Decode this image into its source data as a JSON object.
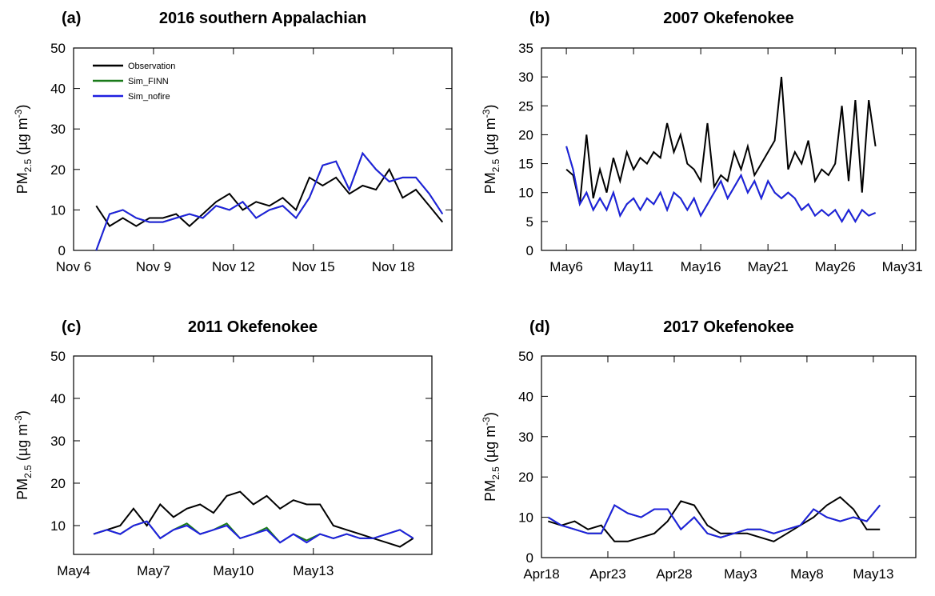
{
  "chart_data": [
    {
      "type": "line",
      "panel": "(a)",
      "title": "2016 southern Appalachian",
      "ylabel": [
        "PM",
        "2.5",
        " (µg m",
        "-3",
        ")"
      ],
      "xlim": [
        6,
        20.2
      ],
      "xticks": [
        {
          "value": 6,
          "label": "Nov 6"
        },
        {
          "value": 9,
          "label": "Nov 9"
        },
        {
          "value": 12,
          "label": "Nov 12"
        },
        {
          "value": 15,
          "label": "Nov 15"
        },
        {
          "value": 18,
          "label": "Nov 18"
        }
      ],
      "ylim": [
        0,
        50
      ],
      "yticks": [
        0,
        10,
        20,
        30,
        40,
        50
      ],
      "legend": "upper left",
      "x": [
        6.85,
        7.35,
        7.85,
        8.35,
        8.85,
        9.35,
        9.85,
        10.35,
        10.85,
        11.35,
        11.85,
        12.35,
        12.85,
        13.35,
        13.85,
        14.35,
        14.85,
        15.35,
        15.85,
        16.35,
        16.85,
        17.35,
        17.85,
        18.35,
        18.85,
        19.35,
        19.85
      ],
      "series": [
        {
          "name": "Observation",
          "color": "#000000",
          "values": [
            11,
            6,
            8,
            6,
            8,
            8,
            9,
            6,
            9,
            12,
            14,
            10,
            12,
            11,
            13,
            10,
            18,
            16,
            18,
            14,
            16,
            15,
            20,
            13,
            15,
            11,
            7
          ]
        },
        {
          "name": "Sim_FINN",
          "color": "#1a7a1a",
          "values": [
            0,
            9,
            10,
            8,
            7,
            7,
            8,
            9,
            8,
            11,
            10,
            12,
            8,
            10,
            11,
            8,
            13,
            21,
            22,
            15,
            24,
            20,
            17,
            18,
            18,
            14,
            9
          ]
        },
        {
          "name": "Sim_nofire",
          "color": "#1f1fe0",
          "values": [
            0,
            9,
            10,
            8,
            7,
            7,
            8,
            9,
            8,
            11,
            10,
            12,
            8,
            10,
            11,
            8,
            13,
            21,
            22,
            15,
            24,
            20,
            17,
            18,
            18,
            14,
            9
          ]
        }
      ]
    },
    {
      "type": "line",
      "panel": "(b)",
      "title": "2007 Okefenokee",
      "ylabel": [
        "PM",
        "2.5",
        " (µg m",
        "-3",
        ")"
      ],
      "xlim": [
        4.15,
        32
      ],
      "xticks": [
        {
          "value": 6,
          "label": "May6"
        },
        {
          "value": 11,
          "label": "May11"
        },
        {
          "value": 16,
          "label": "May16"
        },
        {
          "value": 21,
          "label": "May21"
        },
        {
          "value": 26,
          "label": "May26"
        },
        {
          "value": 31,
          "label": "May31"
        }
      ],
      "ylim": [
        0,
        35
      ],
      "yticks": [
        0,
        5,
        10,
        15,
        20,
        25,
        30,
        35
      ],
      "x": [
        6,
        6.5,
        7,
        7.5,
        8,
        8.5,
        9,
        9.5,
        10,
        10.5,
        11,
        11.5,
        12,
        12.5,
        13,
        13.5,
        14,
        14.5,
        15,
        15.5,
        16,
        16.5,
        17,
        17.5,
        18,
        18.5,
        19,
        19.5,
        20,
        20.5,
        21,
        21.5,
        22,
        22.5,
        23,
        23.5,
        24,
        24.5,
        25,
        25.5,
        26,
        26.5,
        27,
        27.5,
        28,
        28.5,
        29
      ],
      "series": [
        {
          "color": "#000000",
          "values": [
            14,
            13,
            8,
            20,
            9,
            14,
            10,
            16,
            12,
            17,
            14,
            16,
            15,
            17,
            16,
            22,
            17,
            20,
            15,
            14,
            12,
            22,
            11,
            13,
            12,
            17,
            14,
            18,
            13,
            15,
            17,
            19,
            30,
            14,
            17,
            15,
            19,
            12,
            14,
            13,
            15,
            25,
            12,
            26,
            10,
            26,
            18
          ]
        },
        {
          "color": "#1a7a1a",
          "values": [
            18,
            14,
            8,
            10,
            7,
            9,
            7,
            10,
            6,
            8,
            9,
            7,
            9,
            8,
            10,
            7,
            10,
            9,
            7,
            9,
            6,
            8,
            10,
            12,
            9,
            11,
            13,
            10,
            12,
            9,
            12,
            10,
            9,
            10,
            9,
            7,
            8,
            6,
            7,
            6,
            7,
            5,
            7,
            5,
            7,
            6,
            6.5
          ]
        },
        {
          "color": "#1f1fe0",
          "values": [
            18,
            14,
            8,
            10,
            7,
            9,
            7,
            10,
            6,
            8,
            9,
            7,
            9,
            8,
            10,
            7,
            10,
            9,
            7,
            9,
            6,
            8,
            10,
            12,
            9,
            11,
            13,
            10,
            12,
            9,
            12,
            10,
            9,
            10,
            9,
            7,
            8,
            6,
            7,
            6,
            7,
            5,
            7,
            5,
            7,
            6,
            6.5
          ]
        }
      ]
    },
    {
      "type": "line",
      "panel": "(c)",
      "title": "2011 Okefenokee",
      "ylabel": [
        "PM",
        "2.5",
        " (µg m",
        "-3",
        ")"
      ],
      "xlim": [
        4,
        17.45
      ],
      "xticks": [
        {
          "value": 4,
          "label": "May4"
        },
        {
          "value": 7,
          "label": "May7"
        },
        {
          "value": 10,
          "label": "May10"
        },
        {
          "value": 13,
          "label": "May13"
        }
      ],
      "ylim": [
        3.2,
        50
      ],
      "yticks": [
        10,
        20,
        30,
        40,
        50
      ],
      "x": [
        4.75,
        5.25,
        5.75,
        6.25,
        6.75,
        7.25,
        7.75,
        8.25,
        8.75,
        9.25,
        9.75,
        10.25,
        10.75,
        11.25,
        11.75,
        12.25,
        12.75,
        13.25,
        13.75,
        14.25,
        14.75,
        15.25,
        15.75,
        16.25,
        16.75
      ],
      "series": [
        {
          "color": "#000000",
          "values": [
            8,
            9,
            10,
            14,
            10,
            15,
            12,
            14,
            15,
            13,
            17,
            18,
            15,
            17,
            14,
            16,
            15,
            15,
            10,
            9,
            8,
            7,
            6,
            5,
            7
          ]
        },
        {
          "color": "#1a7a1a",
          "values": [
            8,
            9,
            8,
            10,
            11,
            7,
            9,
            10.5,
            8,
            9,
            10.5,
            7,
            8,
            9.5,
            6,
            8,
            6.5,
            8,
            7,
            8,
            7,
            7,
            8,
            9,
            7
          ]
        },
        {
          "color": "#1f1fe0",
          "values": [
            8,
            9,
            8,
            10,
            11,
            7,
            9,
            10,
            8,
            9,
            10,
            7,
            8,
            9,
            6,
            8,
            6,
            8,
            7,
            8,
            7,
            7,
            8,
            9,
            7
          ]
        }
      ]
    },
    {
      "type": "line",
      "panel": "(d)",
      "title": "2017 Okefenokee",
      "ylabel": [
        "PM",
        "2.5",
        " (µg m",
        "-3",
        ")"
      ],
      "xlim": [
        18,
        46.2
      ],
      "xticks": [
        {
          "value": 18,
          "label": "Apr18"
        },
        {
          "value": 23,
          "label": "Apr23"
        },
        {
          "value": 28,
          "label": "Apr28"
        },
        {
          "value": 33,
          "label": "May3"
        },
        {
          "value": 38,
          "label": "May8"
        },
        {
          "value": 43,
          "label": "May13"
        }
      ],
      "ylim": [
        0,
        50
      ],
      "yticks": [
        0,
        10,
        20,
        30,
        40,
        50
      ],
      "x": [
        18.5,
        19.5,
        20.5,
        21.5,
        22.5,
        23.5,
        24.5,
        25.5,
        26.5,
        27.5,
        28.5,
        29.5,
        30.5,
        31.5,
        32.5,
        33.5,
        34.5,
        35.5,
        36.5,
        37.5,
        38.5,
        39.5,
        40.5,
        41.5,
        42.5,
        43.5
      ],
      "series": [
        {
          "color": "#000000",
          "values": [
            9,
            8,
            9,
            7,
            8,
            4,
            4,
            5,
            6,
            9,
            14,
            13,
            8,
            6,
            6,
            6,
            5,
            4,
            6,
            8,
            10,
            13,
            15,
            12,
            7,
            7
          ]
        },
        {
          "color": "#1a7a1a",
          "values": [
            10,
            8,
            7,
            6,
            6,
            13,
            11,
            10,
            12,
            12,
            7,
            10,
            6,
            5,
            6,
            7,
            7,
            6,
            7,
            8,
            12,
            10,
            9,
            10,
            9,
            13
          ]
        },
        {
          "color": "#1f1fe0",
          "values": [
            10,
            8,
            7,
            6,
            6,
            13,
            11,
            10,
            12,
            12,
            7,
            10,
            6,
            5,
            6,
            7,
            7,
            6,
            7,
            8,
            12,
            10,
            9,
            10,
            9,
            13
          ]
        }
      ]
    }
  ]
}
